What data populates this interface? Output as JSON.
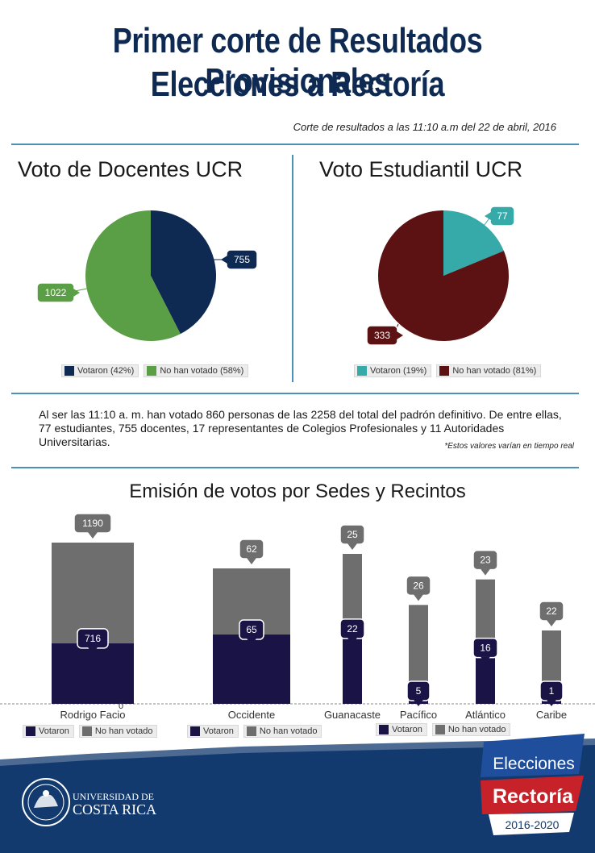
{
  "header": {
    "title_line1": "Primer corte de Resultados Provisionales",
    "title_line2": "Elecciones a Rectoría",
    "subtitle": "Corte de resultados a las 11:10 a.m del 22 de abril, 2016"
  },
  "colors": {
    "navy": "#0f2a52",
    "green": "#5a9e45",
    "teal": "#36aaa8",
    "maroon": "#5c1212",
    "bar_dark": "#1a1446",
    "bar_gray": "#6e6e6e",
    "rule": "#4a90b8",
    "footer_blue": "#123a6e"
  },
  "info": {
    "text": "Al ser las 11:10  a. m. han votado 860 personas de las 2258 del total del padrón definitivo. De entre ellas, 77 estudiantes, 755 docentes, 17 representantes de Colegios Profesionales y 11 Autoridades Universitarias.",
    "note": "*Estos valores varían en tiempo real"
  },
  "chart_data": [
    {
      "type": "pie",
      "title": "Voto de Docentes UCR",
      "slices": [
        {
          "label": "Votaron (42%)",
          "value": 755,
          "color": "#0f2a52"
        },
        {
          "label": "No han votado (58%)",
          "value": 1022,
          "color": "#5a9e45"
        }
      ]
    },
    {
      "type": "pie",
      "title": "Voto Estudiantil UCR",
      "slices": [
        {
          "label": "Votaron (19%)",
          "value": 77,
          "color": "#36aaa8"
        },
        {
          "label": "No han votado (81%)",
          "value": 333,
          "color": "#5c1212"
        }
      ]
    },
    {
      "type": "bar",
      "stacked": true,
      "title": "Emisión de votos por Sedes y Recintos",
      "categories": [
        "Rodrigo Facio"
      ],
      "series": [
        {
          "name": "Votaron",
          "values": [
            716
          ],
          "color": "#1a1446"
        },
        {
          "name": "No han votado",
          "values": [
            1190
          ],
          "color": "#6e6e6e"
        }
      ],
      "zero_label": "0"
    },
    {
      "type": "bar",
      "stacked": true,
      "categories": [
        "Occidente"
      ],
      "series": [
        {
          "name": "Votaron",
          "values": [
            65
          ],
          "color": "#1a1446"
        },
        {
          "name": "No han votado",
          "values": [
            62
          ],
          "color": "#6e6e6e"
        }
      ]
    },
    {
      "type": "bar",
      "stacked": true,
      "categories": [
        "Guanacaste",
        "Pacífico",
        "Atlántico",
        "Caribe"
      ],
      "series": [
        {
          "name": "Votaron",
          "values": [
            22,
            5,
            16,
            1
          ],
          "color": "#1a1446"
        },
        {
          "name": "No han votado",
          "values": [
            25,
            26,
            23,
            22
          ],
          "color": "#6e6e6e"
        }
      ]
    }
  ],
  "footer": {
    "university_line1": "UNIVERSIDAD DE",
    "university_line2": "COSTA RICA",
    "badge_line1": "Elecciones",
    "badge_line2": "Rectoría",
    "badge_years": "2016-2020"
  }
}
